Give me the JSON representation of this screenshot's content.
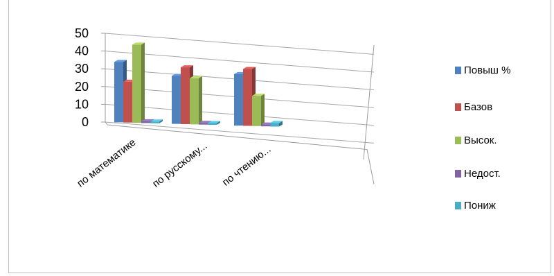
{
  "chart_data": {
    "type": "bar",
    "categories": [
      "по математике",
      "по русскому...",
      "по чтению..."
    ],
    "series": [
      {
        "name": "Повыш %",
        "values": [
          34,
          27,
          29
        ],
        "color": "#4f81bd"
      },
      {
        "name": "Базов",
        "values": [
          23,
          32,
          32
        ],
        "color": "#c0504d"
      },
      {
        "name": "Высок.",
        "values": [
          44,
          26,
          17
        ],
        "color": "#9bbb59"
      },
      {
        "name": "Недост.",
        "values": [
          1,
          0.5,
          0.5
        ],
        "color": "#8064a2"
      },
      {
        "name": "Пониж",
        "values": [
          0,
          1,
          2
        ],
        "color": "#4bacc6"
      }
    ],
    "yticks": [
      0,
      10,
      20,
      30,
      40,
      50
    ],
    "ylim": [
      0,
      50
    ],
    "grid": true,
    "legend": "right",
    "style": "3d-clustered-column"
  }
}
